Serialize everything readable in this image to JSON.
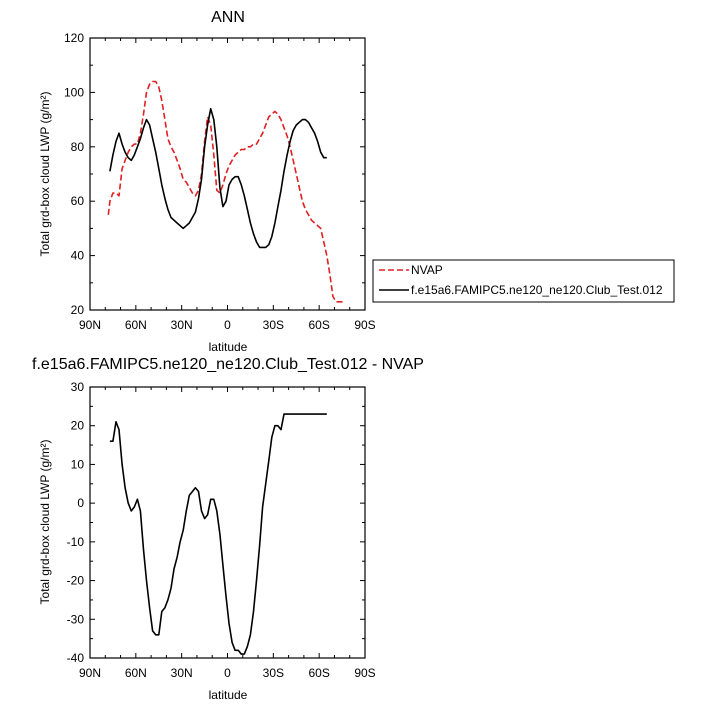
{
  "figure": {
    "colors": {
      "nvap": "#e02020",
      "model": "#000000",
      "axes": "#000000",
      "background": "#ffffff"
    }
  },
  "chart_data": [
    {
      "type": "line",
      "title": "ANN",
      "xlabel": "latitude",
      "ylabel": "Total grd-box cloud LWP (g/m²)",
      "xlim": [
        90,
        -90
      ],
      "ylim": [
        20,
        120
      ],
      "xticks": [
        90,
        60,
        30,
        0,
        -30,
        -60,
        -90
      ],
      "xtick_labels": [
        "90N",
        "60N",
        "30N",
        "0",
        "30S",
        "60S",
        "90S"
      ],
      "yticks": [
        20,
        40,
        60,
        80,
        100,
        120
      ],
      "ytick_labels": [
        "20",
        "40",
        "60",
        "80",
        "100",
        "120"
      ],
      "legend": {
        "placement": "right",
        "entries": [
          "NVAP",
          "f.e15a6.FAMIPC5.ne120_ne120.Club_Test.012"
        ]
      },
      "series": [
        {
          "name": "NVAP",
          "style": "dashed",
          "color": "#e02020",
          "x": [
            78,
            77,
            75,
            73,
            71,
            69,
            67,
            65,
            63,
            61,
            59,
            57,
            55,
            53,
            51,
            49,
            47,
            45,
            43,
            41,
            39,
            37,
            35,
            33,
            31,
            29,
            27,
            25,
            23,
            21,
            19,
            17,
            15,
            13,
            11,
            9,
            7,
            5,
            3,
            1,
            -1,
            -3,
            -5,
            -7,
            -9,
            -11,
            -13,
            -15,
            -17,
            -19,
            -21,
            -23,
            -25,
            -27,
            -29,
            -31,
            -33,
            -35,
            -37,
            -39,
            -41,
            -43,
            -45,
            -47,
            -49,
            -51,
            -53,
            -55,
            -57,
            -59,
            -61,
            -63,
            -65,
            -67,
            -69,
            -71,
            -73,
            -75,
            -77
          ],
          "y": [
            55,
            60,
            63,
            63,
            62,
            72,
            75,
            78,
            80,
            81,
            81,
            85,
            92,
            100,
            103,
            104,
            104,
            102,
            97,
            90,
            83,
            80,
            78,
            75,
            72,
            68,
            67,
            65,
            63,
            62,
            64,
            70,
            82,
            91,
            88,
            77,
            64,
            63,
            66,
            70,
            73,
            75,
            77,
            78,
            79,
            79,
            80,
            80,
            81,
            81,
            83,
            85,
            88,
            91,
            92,
            93,
            92,
            90,
            87,
            84,
            80,
            75,
            70,
            65,
            60,
            57,
            55,
            53,
            52,
            51,
            50,
            45,
            40,
            33,
            25,
            23,
            23,
            23,
            23
          ]
        },
        {
          "name": "f.e15a6.FAMIPC5.ne120_ne120.Club_Test.012",
          "style": "solid",
          "color": "#000000",
          "x": [
            77,
            75,
            73,
            71,
            69,
            67,
            65,
            63,
            61,
            59,
            57,
            55,
            53,
            51,
            49,
            47,
            45,
            43,
            41,
            39,
            37,
            35,
            33,
            31,
            29,
            27,
            25,
            23,
            21,
            19,
            17,
            15,
            13,
            11,
            9,
            7,
            5,
            3,
            1,
            -1,
            -3,
            -5,
            -7,
            -9,
            -11,
            -13,
            -15,
            -17,
            -19,
            -21,
            -23,
            -25,
            -27,
            -29,
            -31,
            -33,
            -35,
            -37,
            -39,
            -41,
            -43,
            -45,
            -47,
            -49,
            -51,
            -53,
            -55,
            -57,
            -59,
            -61,
            -63,
            -65
          ],
          "y": [
            71,
            77,
            82,
            85,
            81,
            78,
            76,
            75,
            77,
            80,
            83,
            87,
            90,
            88,
            83,
            78,
            72,
            66,
            61,
            57,
            54,
            53,
            52,
            51,
            50,
            51,
            52,
            54,
            56,
            61,
            68,
            80,
            88,
            94,
            90,
            80,
            65,
            58,
            60,
            66,
            68,
            69,
            69,
            66,
            62,
            57,
            52,
            48,
            45,
            43,
            43,
            43,
            44,
            47,
            52,
            58,
            64,
            71,
            77,
            82,
            86,
            88,
            89,
            90,
            90,
            89,
            87,
            85,
            82,
            78,
            76,
            76
          ]
        }
      ]
    },
    {
      "type": "line",
      "title": "f.e15a6.FAMIPC5.ne120_ne120.Club_Test.012 - NVAP",
      "xlabel": "latitude",
      "ylabel": "Total grd-box cloud LWP (g/m²)",
      "xlim": [
        90,
        -90
      ],
      "ylim": [
        -40,
        30
      ],
      "xticks": [
        90,
        60,
        30,
        0,
        -30,
        -60,
        -90
      ],
      "xtick_labels": [
        "90N",
        "60N",
        "30N",
        "0",
        "30S",
        "60S",
        "90S"
      ],
      "yticks": [
        -40,
        -30,
        -20,
        -10,
        0,
        10,
        20,
        30
      ],
      "ytick_labels": [
        "-40",
        "-30",
        "-20",
        "-10",
        "0",
        "10",
        "20",
        "30"
      ],
      "series": [
        {
          "name": "f.e15a6.FAMIPC5.ne120_ne120.Club_Test.012 - NVAP",
          "style": "solid",
          "color": "#000000",
          "x": [
            77,
            75,
            73,
            71,
            69,
            67,
            65,
            63,
            61,
            59,
            57,
            55,
            53,
            51,
            49,
            47,
            45,
            43,
            41,
            39,
            37,
            35,
            33,
            31,
            29,
            27,
            25,
            23,
            21,
            19,
            17,
            15,
            13,
            11,
            9,
            7,
            5,
            3,
            1,
            -1,
            -3,
            -5,
            -7,
            -9,
            -11,
            -13,
            -15,
            -17,
            -19,
            -21,
            -23,
            -25,
            -27,
            -29,
            -31,
            -33,
            -35,
            -37,
            -39,
            -41,
            -43,
            -45,
            -47,
            -49,
            -51,
            -53,
            -55,
            -57,
            -59,
            -61,
            -63,
            -65
          ],
          "y": [
            16,
            16,
            21,
            19,
            10,
            4,
            0,
            -2,
            -1,
            1,
            -2,
            -12,
            -20,
            -27,
            -33,
            -34,
            -34,
            -28,
            -27,
            -25,
            -22,
            -17,
            -14,
            -10,
            -7,
            -2,
            2,
            3,
            4,
            3,
            -2,
            -4,
            -3,
            1,
            1,
            -2,
            -8,
            -16,
            -24,
            -31,
            -36,
            -38,
            -38,
            -39,
            -39,
            -37,
            -34,
            -28,
            -20,
            -11,
            -1,
            5,
            11,
            17,
            20,
            20,
            19,
            23,
            23,
            23,
            23,
            23,
            23,
            23,
            23,
            23,
            23,
            23,
            23,
            23,
            23,
            23
          ]
        }
      ]
    }
  ]
}
